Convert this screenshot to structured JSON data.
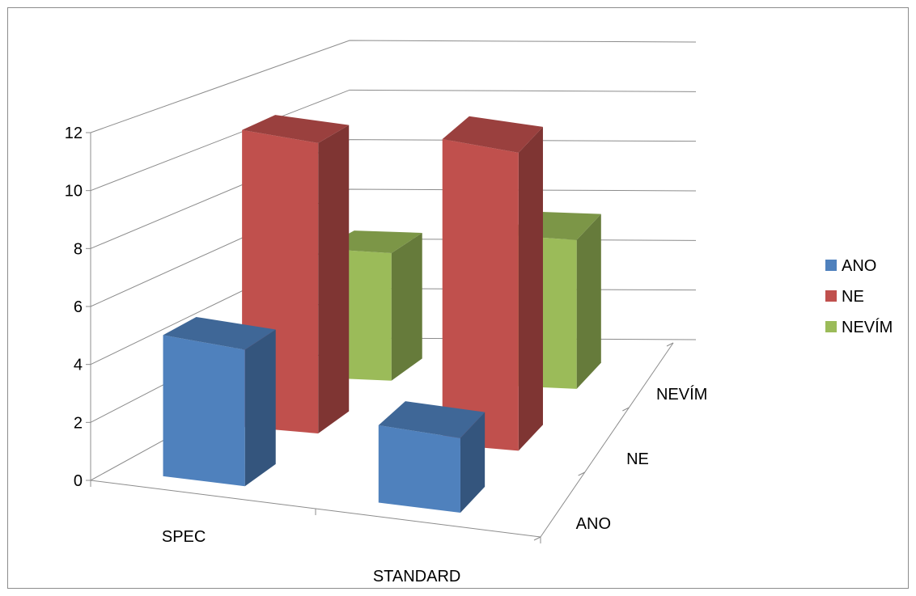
{
  "chart_data": {
    "type": "bar",
    "subtype": "3d-column",
    "title": "",
    "xlabel": "",
    "ylabel": "",
    "categories": [
      "SPEC",
      "STANDARD"
    ],
    "depth_categories": [
      "ANO",
      "NE",
      "NEVÍM"
    ],
    "series": [
      {
        "name": "ANO",
        "values": [
          5,
          3
        ],
        "color": "#4f81bd"
      },
      {
        "name": "NE",
        "values": [
          11,
          12
        ],
        "color": "#c0504d"
      },
      {
        "name": "NEVÍM",
        "values": [
          5,
          6
        ],
        "color": "#9bbb59"
      }
    ],
    "y_ticks": [
      "0",
      "2",
      "4",
      "6",
      "8",
      "10",
      "12"
    ],
    "ylim": [
      0,
      12
    ],
    "grid": true,
    "legend_position": "right"
  }
}
